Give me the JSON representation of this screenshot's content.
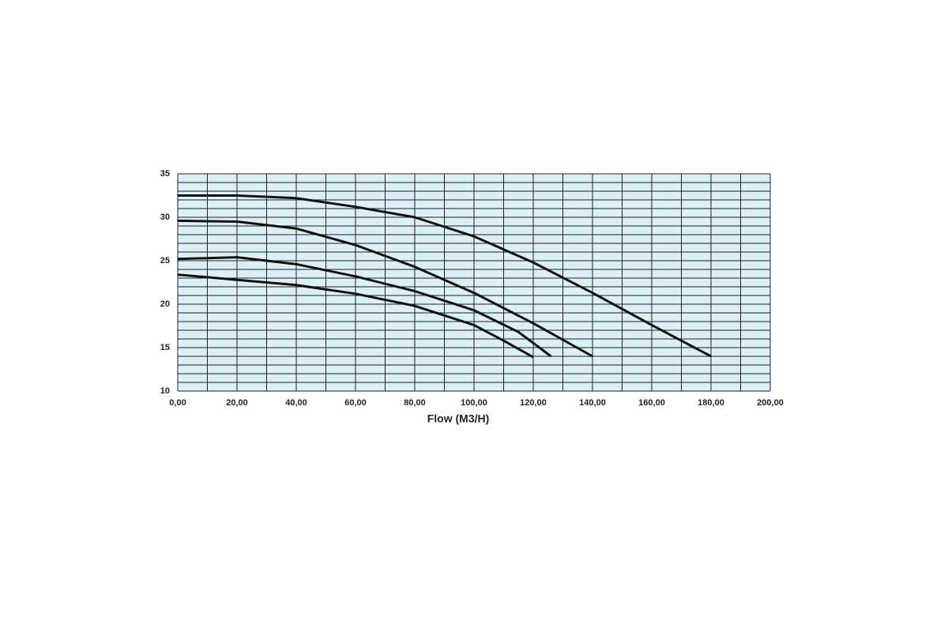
{
  "chart_data": {
    "type": "line",
    "xlabel": "Flow (M3/H)",
    "xlim": [
      0,
      200
    ],
    "ylim": [
      10,
      35
    ],
    "xticks": [
      {
        "value": 0,
        "label": "0,00"
      },
      {
        "value": 20,
        "label": "20,00"
      },
      {
        "value": 40,
        "label": "40,00"
      },
      {
        "value": 60,
        "label": "60,00"
      },
      {
        "value": 80,
        "label": "80,00"
      },
      {
        "value": 100,
        "label": "100,00"
      },
      {
        "value": 120,
        "label": "120,00"
      },
      {
        "value": 140,
        "label": "140,00"
      },
      {
        "value": 160,
        "label": "160,00"
      },
      {
        "value": 180,
        "label": "180,00"
      },
      {
        "value": 200,
        "label": "200,00"
      }
    ],
    "yticks": [
      10,
      15,
      20,
      25,
      30,
      35
    ],
    "xminorticks": [
      10,
      30,
      50,
      70,
      90,
      110,
      130,
      150,
      170,
      190
    ],
    "yminorticks": [
      11,
      12,
      13,
      14,
      16,
      17,
      18,
      19,
      21,
      22,
      23,
      24,
      26,
      27,
      28,
      29,
      31,
      32,
      33,
      34
    ],
    "grid": true,
    "background": "#dcf0f8",
    "series": [
      {
        "color": "#111111",
        "x": [
          0,
          20,
          40,
          60,
          80,
          100,
          120,
          140,
          160,
          180
        ],
        "values": [
          32.5,
          32.5,
          32.2,
          31.2,
          30,
          27.8,
          24.8,
          21.3,
          17.6,
          14
        ]
      },
      {
        "color": "#111111",
        "x": [
          0,
          20,
          40,
          60,
          80,
          100,
          120,
          140
        ],
        "values": [
          29.6,
          29.5,
          28.7,
          26.8,
          24.3,
          21.3,
          17.8,
          14
        ]
      },
      {
        "color": "#111111",
        "x": [
          0,
          20,
          40,
          60,
          80,
          100,
          115,
          126
        ],
        "values": [
          25.2,
          25.4,
          24.6,
          23.2,
          21.5,
          19.3,
          16.8,
          14
        ]
      },
      {
        "color": "#111111",
        "x": [
          0,
          20,
          40,
          60,
          80,
          100,
          110,
          120
        ],
        "values": [
          23.4,
          22.8,
          22.2,
          21.2,
          19.8,
          17.6,
          15.8,
          13.9
        ]
      }
    ]
  }
}
